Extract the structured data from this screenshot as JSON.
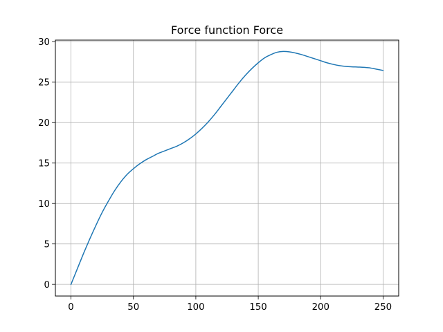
{
  "chart_data": {
    "type": "line",
    "title": "Force function Force",
    "xlabel": "",
    "ylabel": "",
    "xlim": [
      -12.5,
      262.5
    ],
    "ylim": [
      -1.44,
      30.2
    ],
    "grid": true,
    "x_ticks": [
      0,
      50,
      100,
      150,
      200,
      250
    ],
    "y_ticks": [
      0,
      5,
      10,
      15,
      20,
      25,
      30
    ],
    "colors": {
      "series": "#1f77b4",
      "grid": "#b0b0b0",
      "axes": "#000000"
    },
    "series": [
      {
        "x": [
          0,
          5,
          10,
          15,
          20,
          25,
          30,
          35,
          40,
          45,
          50,
          55,
          60,
          65,
          70,
          75,
          80,
          85,
          90,
          95,
          100,
          105,
          110,
          115,
          120,
          125,
          130,
          135,
          140,
          145,
          150,
          155,
          160,
          165,
          170,
          175,
          180,
          185,
          190,
          195,
          200,
          205,
          210,
          215,
          220,
          225,
          230,
          235,
          240,
          245,
          250
        ],
        "values": [
          0,
          1.9,
          3.8,
          5.6,
          7.3,
          8.9,
          10.3,
          11.6,
          12.7,
          13.6,
          14.3,
          14.9,
          15.4,
          15.8,
          16.2,
          16.5,
          16.8,
          17.1,
          17.5,
          18.0,
          18.6,
          19.3,
          20.1,
          21.0,
          22.0,
          23.0,
          24.0,
          25.0,
          25.9,
          26.7,
          27.4,
          28.0,
          28.4,
          28.7,
          28.8,
          28.75,
          28.6,
          28.4,
          28.15,
          27.9,
          27.65,
          27.4,
          27.2,
          27.05,
          26.95,
          26.9,
          26.87,
          26.83,
          26.75,
          26.6,
          26.45
        ]
      }
    ]
  }
}
